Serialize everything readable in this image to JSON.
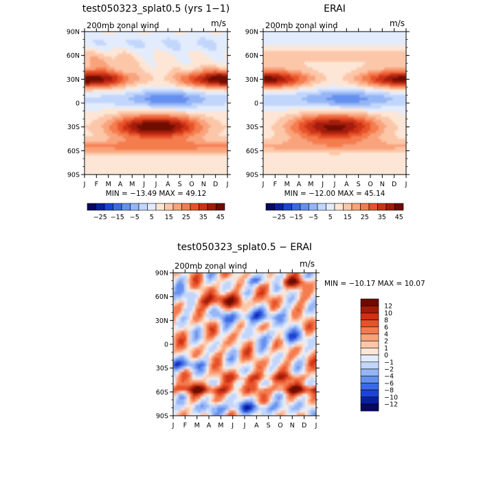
{
  "palette": {
    "full": [
      "#08085e",
      "#0a1fa0",
      "#1c43d6",
      "#3c6ae6",
      "#6690ef",
      "#95b6f6",
      "#c2d6fb",
      "#e2ecfd",
      "#fde6d6",
      "#fcc7a9",
      "#f9a37b",
      "#f47b4e",
      "#e8522a",
      "#cc3214",
      "#a31a07",
      "#6e0b00"
    ],
    "diff": [
      "#08085e",
      "#0a1fa0",
      "#1c43d6",
      "#3c6ae6",
      "#6690ef",
      "#95b6f6",
      "#c2d6fb",
      "#e2ecfd",
      "#fde6d6",
      "#fcc7a9",
      "#f9a37b",
      "#f47b4e",
      "#e8522a",
      "#cc3214",
      "#a31a07",
      "#6e0b00"
    ]
  },
  "chart_data": [
    {
      "type": "heatmap",
      "title": "test050323_splat0.5 (yrs 1−1)",
      "subtitle_left": "200mb zonal wind",
      "subtitle_right": "m/s",
      "x_ticks": [
        "J",
        "F",
        "M",
        "A",
        "M",
        "J",
        "J",
        "A",
        "S",
        "O",
        "N",
        "D",
        "J"
      ],
      "y_ticks": [
        "90N",
        "60N",
        "30N",
        "0",
        "30S",
        "60S",
        "90S"
      ],
      "stats": "MIN = −13.49 MAX =  49.12",
      "colorbar_labels": [
        "−25",
        "−15",
        "−5",
        "5",
        "15",
        "25",
        "35",
        "45"
      ],
      "levels": [
        -30,
        -25,
        -20,
        -15,
        -10,
        -5,
        0,
        5,
        10,
        15,
        20,
        25,
        30,
        35,
        40,
        45
      ],
      "min": -13.49,
      "max": 49.12
    },
    {
      "type": "heatmap",
      "title": "ERAI",
      "subtitle_left": "200mb zonal wind",
      "subtitle_right": "m/s",
      "x_ticks": [
        "J",
        "F",
        "M",
        "A",
        "M",
        "J",
        "J",
        "A",
        "S",
        "O",
        "N",
        "D",
        "J"
      ],
      "y_ticks": [
        "90N",
        "60N",
        "30N",
        "0",
        "30S",
        "60S",
        "90S"
      ],
      "stats": "MIN = −12.00 MAX =  45.14",
      "colorbar_labels": [
        "−25",
        "−15",
        "−5",
        "5",
        "15",
        "25",
        "35",
        "45"
      ],
      "levels": [
        -30,
        -25,
        -20,
        -15,
        -10,
        -5,
        0,
        5,
        10,
        15,
        20,
        25,
        30,
        35,
        40,
        45
      ],
      "min": -12.0,
      "max": 45.14
    },
    {
      "type": "heatmap",
      "title": "test050323_splat0.5 − ERAI",
      "subtitle_left": "200mb zonal wind",
      "subtitle_right": "m/s",
      "x_ticks": [
        "J",
        "F",
        "M",
        "A",
        "M",
        "J",
        "J",
        "A",
        "S",
        "O",
        "N",
        "D",
        "J"
      ],
      "y_ticks": [
        "90N",
        "60N",
        "30N",
        "0",
        "30S",
        "60S",
        "90S"
      ],
      "stats": "MIN = −10.17 MAX =  10.07",
      "colorbar_labels": [
        "12",
        "10",
        "8",
        "6",
        "4",
        "2",
        "1",
        "0",
        "−1",
        "−2",
        "−4",
        "−6",
        "−8",
        "−10",
        "−12"
      ],
      "levels": [
        -14,
        -12,
        -10,
        -8,
        -6,
        -4,
        -2,
        -1,
        0,
        1,
        2,
        4,
        6,
        8,
        10,
        12
      ],
      "min": -10.17,
      "max": 10.07
    }
  ]
}
